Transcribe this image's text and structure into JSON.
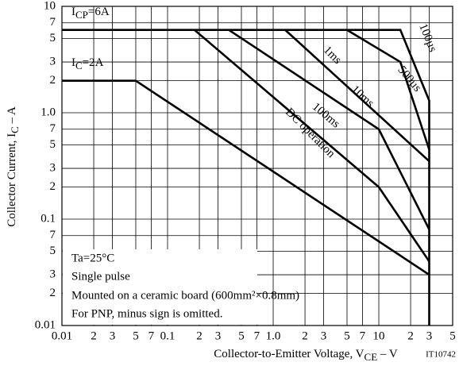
{
  "chart_data": {
    "type": "line",
    "log_x": true,
    "log_y": true,
    "grid": true,
    "x_label": {
      "text": "Collector-to-Emitter Voltage, V",
      "sub": "CE",
      "rest": " – V"
    },
    "y_label": {
      "text": "Collector Current, I",
      "sub": "C",
      "rest": " – A"
    },
    "figure_id": "IT10742",
    "xlim": [
      0.01,
      50
    ],
    "ylim": [
      0.01,
      10
    ],
    "xticks": [
      0.01,
      {
        "value": 0.02,
        "label": "2"
      },
      {
        "value": 0.03,
        "label": "3"
      },
      {
        "value": 0.05,
        "label": "5"
      },
      {
        "value": 0.07,
        "label": "7"
      },
      0.1,
      {
        "value": 0.2,
        "label": "2"
      },
      {
        "value": 0.3,
        "label": "3"
      },
      {
        "value": 0.5,
        "label": "5"
      },
      {
        "value": 0.7,
        "label": "7"
      },
      {
        "value": 1,
        "label": "1.0"
      },
      {
        "value": 2,
        "label": "2"
      },
      {
        "value": 3,
        "label": "3"
      },
      {
        "value": 5,
        "label": "5"
      },
      {
        "value": 7,
        "label": "7"
      },
      10,
      {
        "value": 20,
        "label": "2"
      },
      {
        "value": 30,
        "label": "3"
      },
      {
        "value": 50,
        "label": "5"
      }
    ],
    "yticks": [
      0.01,
      {
        "value": 0.02,
        "label": "2"
      },
      {
        "value": 0.03,
        "label": "3"
      },
      {
        "value": 0.05,
        "label": "5"
      },
      {
        "value": 0.07,
        "label": "7"
      },
      0.1,
      {
        "value": 0.2,
        "label": "2"
      },
      {
        "value": 0.3,
        "label": "3"
      },
      {
        "value": 0.5,
        "label": "5"
      },
      {
        "value": 0.7,
        "label": "7"
      },
      {
        "value": 1,
        "label": "1.0"
      },
      {
        "value": 2,
        "label": "2"
      },
      {
        "value": 3,
        "label": "3"
      },
      {
        "value": 5,
        "label": "5"
      },
      {
        "value": 7,
        "label": "7"
      },
      10
    ],
    "series": [
      {
        "name": "100µs",
        "color": "#000000",
        "x": [
          0.01,
          16,
          30,
          30
        ],
        "values": [
          6,
          6,
          1.3,
          0.01
        ]
      },
      {
        "name": "500µs",
        "color": "#000000",
        "x": [
          5,
          16,
          30
        ],
        "values": [
          6,
          3,
          0.45
        ]
      },
      {
        "name": "1ms",
        "color": "#000000",
        "x": [
          1.3,
          30
        ],
        "values": [
          6,
          0.35
        ]
      },
      {
        "name": "10ms",
        "color": "#000000",
        "x": [
          0.38,
          10,
          30
        ],
        "values": [
          6,
          0.7,
          0.08
        ]
      },
      {
        "name": "100ms",
        "color": "#000000",
        "x": [
          0.18,
          10,
          30
        ],
        "values": [
          6,
          0.2,
          0.04
        ]
      },
      {
        "name": "DC operation",
        "color": "#000000",
        "x": [
          0.01,
          0.05,
          30
        ],
        "values": [
          2,
          2,
          0.03
        ]
      }
    ],
    "annotations": [
      {
        "text": "I",
        "sub": "CP",
        "rest": "=6A"
      },
      {
        "text": "I",
        "sub": "C",
        "rest": "=2A"
      }
    ],
    "notes": [
      "Ta=25°C",
      "Single pulse",
      "Mounted on a ceramic board (600mm²×0.8mm)",
      "For PNP, minus sign is omitted."
    ]
  }
}
